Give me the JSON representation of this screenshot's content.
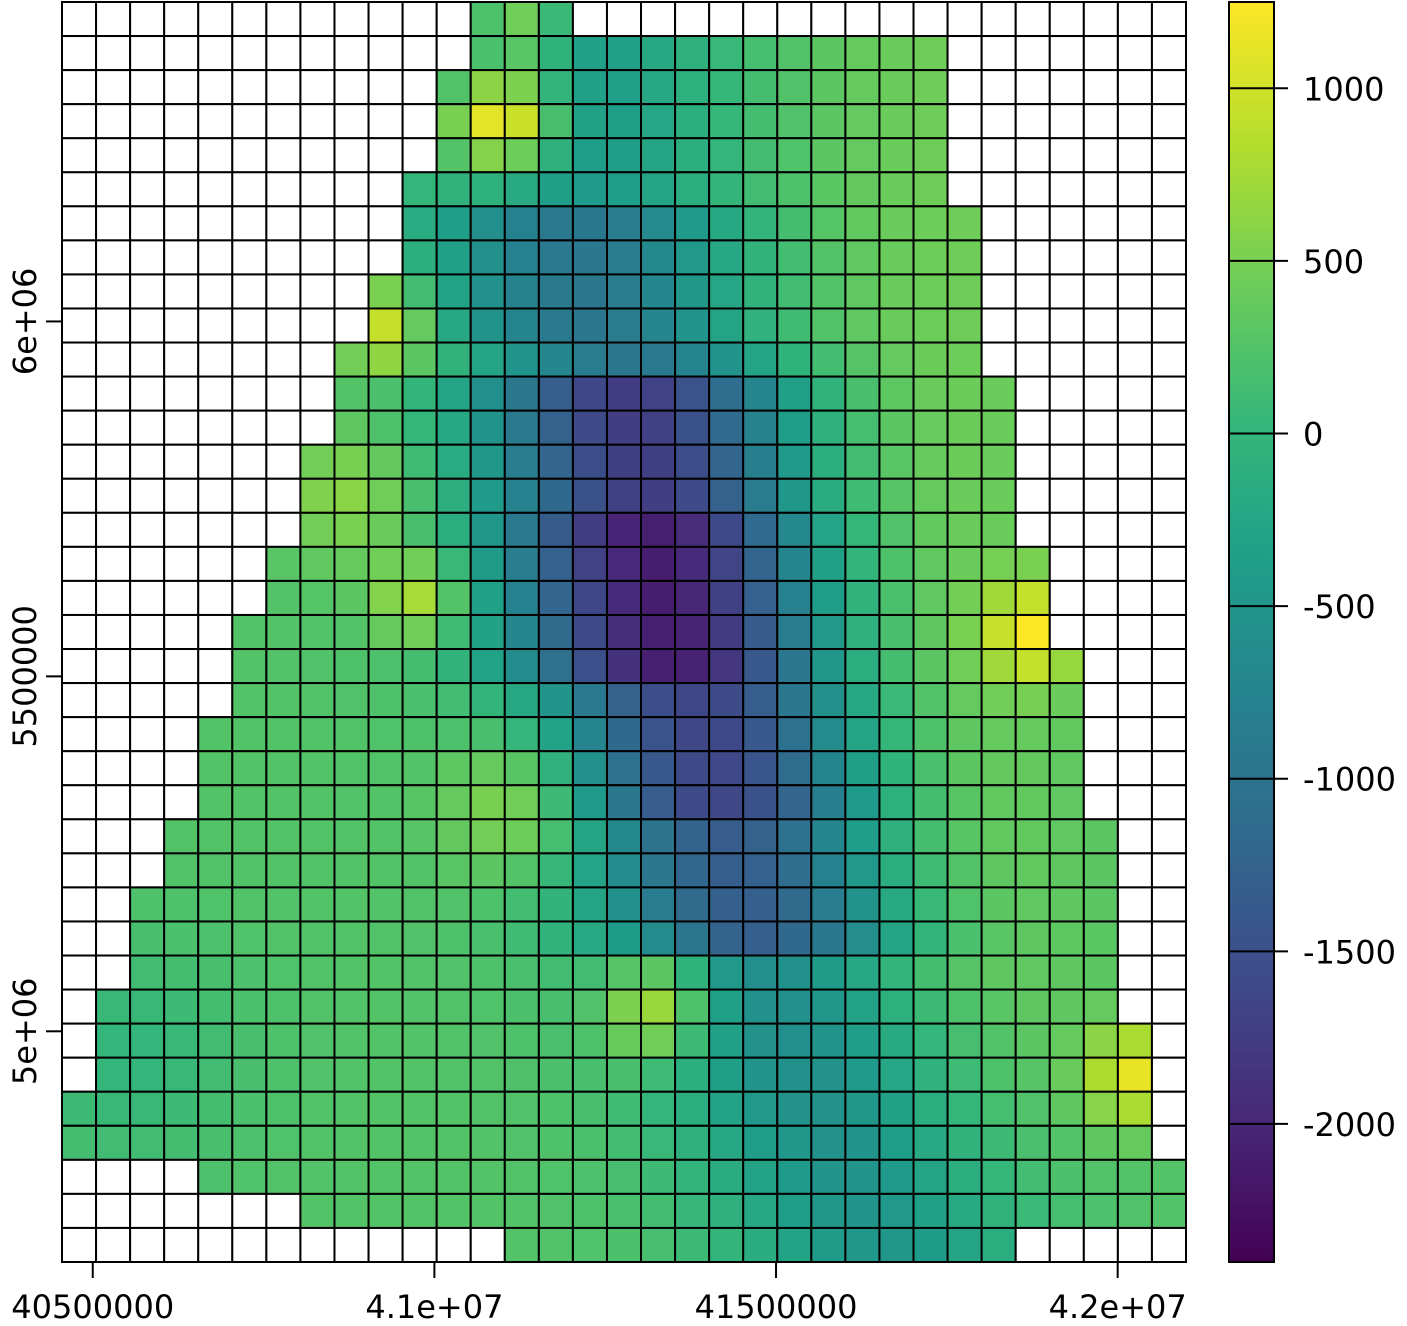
{
  "chart_data": {
    "type": "heatmap",
    "title": "",
    "xlabel": "",
    "ylabel": "",
    "xlim": [
      40455000,
      42100000
    ],
    "ylim": [
      4675000,
      6450000
    ],
    "x_ticks": [
      {
        "value": 40500000,
        "label": "40500000"
      },
      {
        "value": 41000000,
        "label": "4.1e+07"
      },
      {
        "value": 41500000,
        "label": "41500000"
      },
      {
        "value": 42000000,
        "label": "4.2e+07"
      }
    ],
    "y_ticks": [
      {
        "value": 5000000,
        "label": "5e+06"
      },
      {
        "value": 5500000,
        "label": "5500000"
      },
      {
        "value": 6000000,
        "label": "6e+06"
      }
    ],
    "colorbar": {
      "min": -2400,
      "max": 1250,
      "palette": [
        "#440154",
        "#482878",
        "#3E4A89",
        "#31688E",
        "#26828E",
        "#1F9E89",
        "#35B779",
        "#6DCD59",
        "#B4DE2C",
        "#FDE725"
      ],
      "ticks": [
        {
          "value": 1000,
          "label": "1000"
        },
        {
          "value": 500,
          "label": "500"
        },
        {
          "value": 0,
          "label": "0"
        },
        {
          "value": -500,
          "label": "-500"
        },
        {
          "value": -1000,
          "label": "-1000"
        },
        {
          "value": -1500,
          "label": "-1500"
        },
        {
          "value": -2000,
          "label": "-2000"
        }
      ]
    },
    "grid": {
      "columns": 33,
      "rows": 37,
      "x_start": 40455000,
      "x_end": 42100000,
      "y_top": 6450000,
      "y_bottom": 4675000,
      "rows_data": [
        "..........|.....................|.",
        "............VVU.....................",
        "............VVU.....................",
        "..........MMVUSP.M.....................",
        "..........MMVUSP.....................",
        "..........MMYYS.....................",
        "..........VVS.....................",
        ".......SSSC.....................",
        ".......SSSC.....................",
        ".......SSSC....................."
      ]
    }
  }
}
